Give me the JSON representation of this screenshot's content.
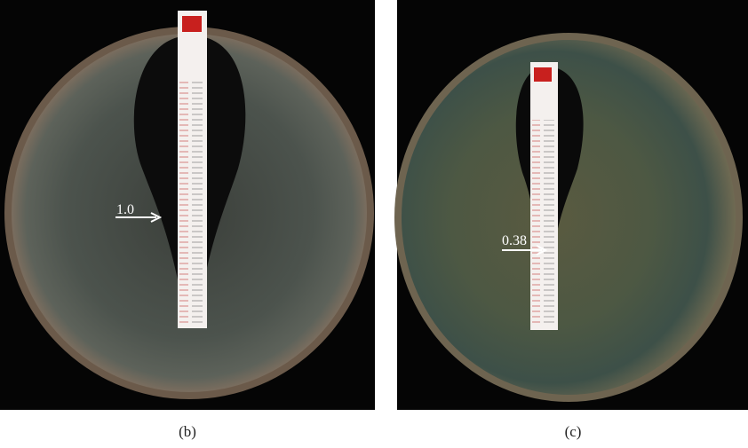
{
  "panels": [
    {
      "annotation": "1.0",
      "label": "(b)"
    },
    {
      "annotation": "0.38",
      "label": "(c)"
    }
  ]
}
